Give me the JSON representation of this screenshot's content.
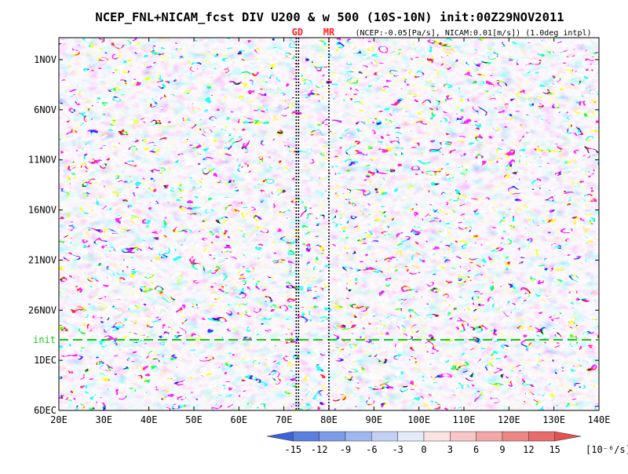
{
  "chart_data": {
    "type": "heatmap",
    "title": "NCEP_FNL+NICAM_fcst DIV U200 & w 500 (10S-10N) init:00Z29NOV2011",
    "subtitle": "(NCEP:-0.05[Pa/s], NICAM:0.01[m/s]) (1.0deg intpl)",
    "markers": [
      {
        "label": "GD",
        "lon": 73
      },
      {
        "label": "MR",
        "lon": 80
      }
    ],
    "x": {
      "ticks": [
        "20E",
        "30E",
        "40E",
        "50E",
        "60E",
        "70E",
        "80E",
        "90E",
        "100E",
        "110E",
        "120E",
        "130E",
        "140E"
      ],
      "range": [
        20,
        140
      ]
    },
    "y": {
      "ticks": [
        "1NOV",
        "6NOV",
        "11NOV",
        "16NOV",
        "21NOV",
        "26NOV",
        "1DEC",
        "6DEC"
      ],
      "range_days": [
        1,
        36
      ]
    },
    "init": {
      "label": "init",
      "date": "29NOV2011"
    },
    "colorbar": {
      "levels": [
        "-15",
        "-12",
        "-9",
        "-6",
        "-3",
        "0",
        "3",
        "6",
        "9",
        "12",
        "15"
      ],
      "unit": "[10⁻⁶/s]",
      "colors": [
        "#3d61d9",
        "#5a7fe0",
        "#7b9be8",
        "#9fb7ef",
        "#c3d1f5",
        "#e4ebfa",
        "#fbe3e3",
        "#f7c6c6",
        "#f3a6a6",
        "#ee8686",
        "#e86a6a",
        "#e25050"
      ]
    },
    "contour_color": "#000000",
    "init_line_color": "#11cc11",
    "marker_color": "#ff2222"
  }
}
